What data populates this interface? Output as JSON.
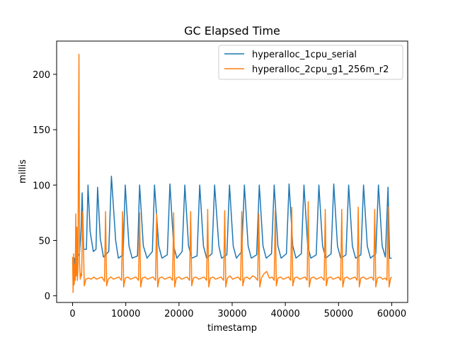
{
  "chart_data": {
    "type": "line",
    "title": "GC Elapsed Time",
    "xlabel": "timestamp",
    "ylabel": "millis",
    "xlim": [
      -3000,
      63000
    ],
    "ylim": [
      -6,
      230
    ],
    "xticks": [
      0,
      10000,
      20000,
      30000,
      40000,
      50000,
      60000
    ],
    "yticks": [
      0,
      50,
      100,
      150,
      200
    ],
    "grid": false,
    "legend_position": "top-right",
    "series": [
      {
        "name": "hyperalloc_1cpu_serial",
        "color": "#1f77b4",
        "points": [
          [
            0,
            30
          ],
          [
            200,
            20
          ],
          [
            400,
            34
          ],
          [
            700,
            28
          ],
          [
            1000,
            36
          ],
          [
            1300,
            38
          ],
          [
            1600,
            60
          ],
          [
            1800,
            93
          ],
          [
            2100,
            42
          ],
          [
            2600,
            42
          ],
          [
            2900,
            100
          ],
          [
            3300,
            58
          ],
          [
            3900,
            40
          ],
          [
            4400,
            42
          ],
          [
            4700,
            98
          ],
          [
            5200,
            52
          ],
          [
            5800,
            35
          ],
          [
            6800,
            40
          ],
          [
            7300,
            108
          ],
          [
            8100,
            50
          ],
          [
            8600,
            34
          ],
          [
            9500,
            37
          ],
          [
            9900,
            100
          ],
          [
            10600,
            45
          ],
          [
            11200,
            34
          ],
          [
            12200,
            36
          ],
          [
            12600,
            100
          ],
          [
            13300,
            45
          ],
          [
            14000,
            34
          ],
          [
            15000,
            40
          ],
          [
            15400,
            100
          ],
          [
            16200,
            45
          ],
          [
            16800,
            34
          ],
          [
            17800,
            37
          ],
          [
            18300,
            101
          ],
          [
            19000,
            45
          ],
          [
            19600,
            34
          ],
          [
            20600,
            40
          ],
          [
            21100,
            100
          ],
          [
            21800,
            45
          ],
          [
            22400,
            34
          ],
          [
            23400,
            36
          ],
          [
            23900,
            100
          ],
          [
            24600,
            45
          ],
          [
            25200,
            34
          ],
          [
            26200,
            38
          ],
          [
            26700,
            100
          ],
          [
            27500,
            45
          ],
          [
            28000,
            34
          ],
          [
            29000,
            37
          ],
          [
            29500,
            100
          ],
          [
            30200,
            45
          ],
          [
            30800,
            34
          ],
          [
            31800,
            40
          ],
          [
            32300,
            100
          ],
          [
            33000,
            45
          ],
          [
            33600,
            34
          ],
          [
            34600,
            37
          ],
          [
            35100,
            100
          ],
          [
            35800,
            45
          ],
          [
            36400,
            34
          ],
          [
            37400,
            38
          ],
          [
            37900,
            100
          ],
          [
            38600,
            45
          ],
          [
            39200,
            34
          ],
          [
            40200,
            38
          ],
          [
            40700,
            101
          ],
          [
            41400,
            45
          ],
          [
            42000,
            34
          ],
          [
            43000,
            38
          ],
          [
            43500,
            100
          ],
          [
            44200,
            45
          ],
          [
            44800,
            34
          ],
          [
            45800,
            37
          ],
          [
            46300,
            100
          ],
          [
            47000,
            45
          ],
          [
            47600,
            34
          ],
          [
            48600,
            38
          ],
          [
            49100,
            101
          ],
          [
            49800,
            45
          ],
          [
            50400,
            34
          ],
          [
            51400,
            37
          ],
          [
            51900,
            100
          ],
          [
            52600,
            45
          ],
          [
            53200,
            34
          ],
          [
            54200,
            37
          ],
          [
            54700,
            100
          ],
          [
            55400,
            45
          ],
          [
            56000,
            34
          ],
          [
            57000,
            38
          ],
          [
            57500,
            100
          ],
          [
            58200,
            45
          ],
          [
            58800,
            35
          ],
          [
            59300,
            98
          ],
          [
            59600,
            34
          ],
          [
            60000,
            34
          ]
        ]
      },
      {
        "name": "hyperalloc_2cpu_g1_256m_r2",
        "color": "#ff7f0e",
        "points": [
          [
            0,
            35
          ],
          [
            100,
            3
          ],
          [
            200,
            38
          ],
          [
            300,
            10
          ],
          [
            400,
            28
          ],
          [
            500,
            14
          ],
          [
            600,
            74
          ],
          [
            700,
            18
          ],
          [
            800,
            62
          ],
          [
            900,
            14
          ],
          [
            1000,
            24
          ],
          [
            1100,
            120
          ],
          [
            1200,
            218
          ],
          [
            1300,
            30
          ],
          [
            1450,
            15
          ],
          [
            1600,
            20
          ],
          [
            1700,
            18
          ],
          [
            1900,
            76
          ],
          [
            2200,
            9
          ],
          [
            2500,
            15
          ],
          [
            3000,
            16
          ],
          [
            3500,
            15
          ],
          [
            4000,
            17
          ],
          [
            4500,
            15
          ],
          [
            5000,
            16
          ],
          [
            5500,
            17
          ],
          [
            6000,
            13
          ],
          [
            6200,
            76
          ],
          [
            6400,
            9
          ],
          [
            6700,
            15
          ],
          [
            7200,
            17
          ],
          [
            7700,
            15
          ],
          [
            8200,
            16
          ],
          [
            8700,
            17
          ],
          [
            9200,
            14
          ],
          [
            9400,
            76
          ],
          [
            9600,
            8
          ],
          [
            9900,
            16
          ],
          [
            10400,
            17
          ],
          [
            10900,
            15
          ],
          [
            11400,
            16
          ],
          [
            11900,
            17
          ],
          [
            12400,
            14
          ],
          [
            12600,
            75
          ],
          [
            12800,
            8
          ],
          [
            13100,
            16
          ],
          [
            13600,
            17
          ],
          [
            14100,
            15
          ],
          [
            14600,
            16
          ],
          [
            15100,
            17
          ],
          [
            15600,
            14
          ],
          [
            15800,
            74
          ],
          [
            16000,
            8
          ],
          [
            16300,
            16
          ],
          [
            16800,
            17
          ],
          [
            17300,
            15
          ],
          [
            17800,
            16
          ],
          [
            18300,
            17
          ],
          [
            18800,
            14
          ],
          [
            19000,
            75
          ],
          [
            19200,
            8
          ],
          [
            19500,
            16
          ],
          [
            20000,
            17
          ],
          [
            20500,
            15
          ],
          [
            21000,
            16
          ],
          [
            21500,
            17
          ],
          [
            22000,
            14
          ],
          [
            22200,
            76
          ],
          [
            22400,
            9
          ],
          [
            22700,
            16
          ],
          [
            23200,
            17
          ],
          [
            23700,
            15
          ],
          [
            24200,
            16
          ],
          [
            24700,
            17
          ],
          [
            25200,
            14
          ],
          [
            25400,
            78
          ],
          [
            25600,
            8
          ],
          [
            25900,
            16
          ],
          [
            26400,
            17
          ],
          [
            26900,
            15
          ],
          [
            27400,
            16
          ],
          [
            27900,
            17
          ],
          [
            28400,
            14
          ],
          [
            28600,
            77
          ],
          [
            28800,
            8
          ],
          [
            29100,
            16
          ],
          [
            29600,
            18
          ],
          [
            30100,
            15
          ],
          [
            30600,
            16
          ],
          [
            31100,
            17
          ],
          [
            31600,
            14
          ],
          [
            31800,
            76
          ],
          [
            32000,
            9
          ],
          [
            32300,
            16
          ],
          [
            32800,
            17
          ],
          [
            33300,
            15
          ],
          [
            33800,
            18
          ],
          [
            34300,
            17
          ],
          [
            34800,
            14
          ],
          [
            35000,
            74
          ],
          [
            35200,
            8
          ],
          [
            35500,
            16
          ],
          [
            36000,
            20
          ],
          [
            36500,
            22
          ],
          [
            37000,
            16
          ],
          [
            37500,
            17
          ],
          [
            37900,
            14
          ],
          [
            38100,
            77
          ],
          [
            38300,
            9
          ],
          [
            38600,
            16
          ],
          [
            39100,
            17
          ],
          [
            39600,
            15
          ],
          [
            40100,
            16
          ],
          [
            40600,
            17
          ],
          [
            41000,
            14
          ],
          [
            41200,
            80
          ],
          [
            41400,
            9
          ],
          [
            41700,
            16
          ],
          [
            42200,
            17
          ],
          [
            42700,
            15
          ],
          [
            43200,
            16
          ],
          [
            43700,
            17
          ],
          [
            44100,
            14
          ],
          [
            44300,
            85
          ],
          [
            44500,
            8
          ],
          [
            44800,
            16
          ],
          [
            45300,
            17
          ],
          [
            45800,
            15
          ],
          [
            46300,
            16
          ],
          [
            46800,
            17
          ],
          [
            47300,
            14
          ],
          [
            47500,
            78
          ],
          [
            47700,
            9
          ],
          [
            48000,
            16
          ],
          [
            48500,
            17
          ],
          [
            49000,
            15
          ],
          [
            49500,
            16
          ],
          [
            50000,
            17
          ],
          [
            50400,
            14
          ],
          [
            50600,
            78
          ],
          [
            50800,
            8
          ],
          [
            51100,
            16
          ],
          [
            51600,
            17
          ],
          [
            52100,
            15
          ],
          [
            52600,
            16
          ],
          [
            53100,
            17
          ],
          [
            53500,
            14
          ],
          [
            53700,
            80
          ],
          [
            53900,
            8
          ],
          [
            54200,
            16
          ],
          [
            54700,
            17
          ],
          [
            55200,
            15
          ],
          [
            55700,
            16
          ],
          [
            56200,
            17
          ],
          [
            56600,
            14
          ],
          [
            56800,
            78
          ],
          [
            57000,
            8
          ],
          [
            57300,
            16
          ],
          [
            57800,
            17
          ],
          [
            58300,
            15
          ],
          [
            58800,
            16
          ],
          [
            59100,
            14
          ],
          [
            59300,
            80
          ],
          [
            59500,
            8
          ],
          [
            59800,
            16
          ],
          [
            60000,
            17
          ]
        ]
      }
    ]
  }
}
